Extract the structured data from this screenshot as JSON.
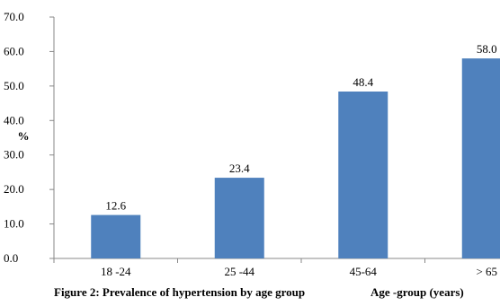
{
  "caption": "Figure 2: Prevalence of hypertension by age group",
  "chart_data": {
    "type": "bar",
    "categories": [
      "18 -24",
      "25 -44",
      "45-64",
      "> 65"
    ],
    "values": [
      12.6,
      23.4,
      48.4,
      58.0
    ],
    "value_labels": [
      "12.6",
      "23.4",
      "48.4",
      "58.0"
    ],
    "xlabel": "Age -group (years)",
    "ylabel": "%",
    "ylim": [
      0,
      70
    ],
    "yticks": [
      "0.0",
      "10.0",
      "20.0",
      "30.0",
      "40.0",
      "50.0",
      "60.0",
      "70.0"
    ],
    "grid": false,
    "bar_color": "#4f81bd"
  }
}
